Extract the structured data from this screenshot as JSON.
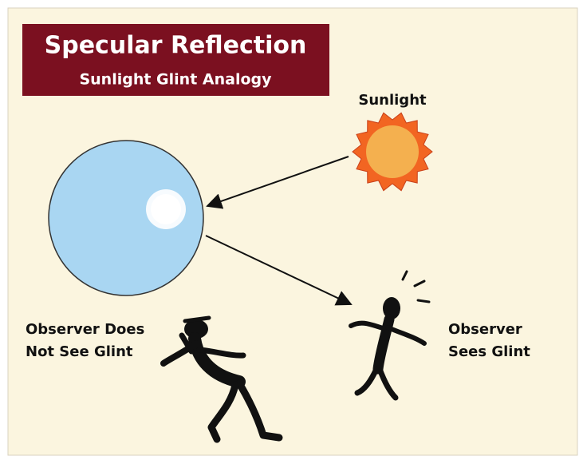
{
  "header": {
    "title": "Specular Reflection",
    "subtitle": "Sunlight Glint Analogy"
  },
  "labels": {
    "sun": "Sunlight",
    "observer_left": [
      "Observer Does",
      "Not See Glint"
    ],
    "observer_right": [
      "Observer",
      "Sees Glint"
    ]
  }
}
